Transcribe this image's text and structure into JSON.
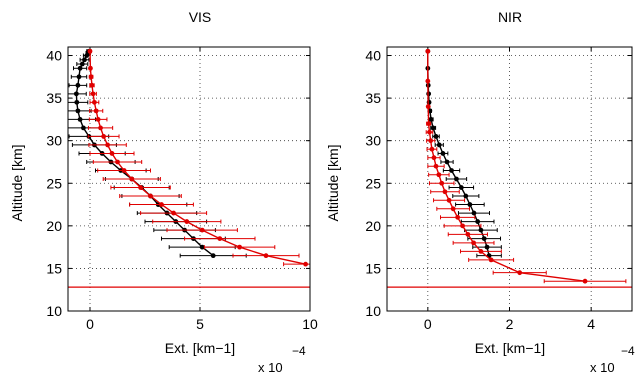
{
  "chart_data": [
    {
      "type": "line",
      "title": "VIS",
      "xlabel": "Ext. [km−1]",
      "ylabel": "Altitude [km]",
      "x_multiplier": "x 10",
      "x_exponent": "−4",
      "xlim": [
        -1,
        10
      ],
      "ylim": [
        10,
        41
      ],
      "xticks": [
        0,
        5,
        10
      ],
      "yticks": [
        10,
        15,
        20,
        25,
        30,
        35,
        40
      ],
      "grid": true,
      "reference_line": {
        "y": 12.8,
        "color": "#e00000"
      },
      "series": [
        {
          "color": "#000000",
          "x": [
            5.6,
            5.1,
            4.7,
            4.3,
            3.9,
            3.5,
            3.1,
            2.75,
            2.35,
            1.9,
            1.4,
            0.95,
            0.55,
            0.2,
            -0.05,
            -0.3,
            -0.45,
            -0.55,
            -0.6,
            -0.62,
            -0.55,
            -0.5,
            -0.45,
            -0.35,
            -0.25,
            -0.15,
            -0.08,
            -0.05
          ],
          "y": [
            16.5,
            17.5,
            18.5,
            19.5,
            20.5,
            21.5,
            22.5,
            23.5,
            24.5,
            25.5,
            26.5,
            27.5,
            28.5,
            29.5,
            30.5,
            31.5,
            32.5,
            33.5,
            34.5,
            35.5,
            36.5,
            37.5,
            38.5,
            39.0,
            39.5,
            40.0,
            40.3,
            40.5
          ],
          "xerr": [
            1.5,
            1.5,
            1.45,
            1.4,
            1.4,
            1.35,
            1.3,
            1.3,
            1.25,
            1.2,
            1.15,
            1.1,
            1.05,
            1.0,
            0.9,
            0.8,
            0.7,
            0.6,
            0.5,
            0.45,
            0.4,
            0.35,
            0.3,
            0.25,
            0.2,
            0.15,
            0.1,
            0.1
          ]
        },
        {
          "color": "#e00000",
          "x": [
            9.8,
            8.0,
            6.8,
            5.9,
            5.1,
            4.4,
            3.8,
            3.25,
            2.75,
            2.3,
            1.9,
            1.55,
            1.25,
            1.0,
            0.8,
            0.62,
            0.48,
            0.37,
            0.28,
            0.2,
            0.14,
            0.09,
            0.05,
            0.02,
            0.0
          ],
          "y": [
            15.5,
            16.5,
            17.5,
            18.5,
            19.5,
            20.5,
            21.5,
            22.5,
            23.5,
            24.5,
            25.5,
            26.5,
            27.5,
            28.5,
            29.5,
            30.5,
            31.5,
            32.5,
            33.5,
            34.5,
            35.5,
            36.5,
            37.5,
            38.5,
            40.5
          ],
          "xerr": [
            1.0,
            1.5,
            1.6,
            1.6,
            1.6,
            1.55,
            1.5,
            1.45,
            1.4,
            1.35,
            1.3,
            1.2,
            1.1,
            1.0,
            0.85,
            0.7,
            0.55,
            0.4,
            0.3,
            0.2,
            0.15,
            0.1,
            0.08,
            0.05,
            0.05
          ]
        }
      ]
    },
    {
      "type": "line",
      "title": "NIR",
      "xlabel": "Ext. [km−1]",
      "ylabel": "Altitude [km]",
      "x_multiplier": "x 10",
      "x_exponent": "−4",
      "xlim": [
        -1,
        5
      ],
      "ylim": [
        10,
        41
      ],
      "xticks": [
        0,
        2,
        4
      ],
      "yticks": [
        10,
        15,
        20,
        25,
        30,
        35,
        40
      ],
      "grid": true,
      "reference_line": {
        "y": 12.8,
        "color": "#e00000"
      },
      "series": [
        {
          "color": "#000000",
          "x": [
            1.5,
            1.45,
            1.38,
            1.3,
            1.22,
            1.13,
            1.03,
            0.93,
            0.82,
            0.7,
            0.58,
            0.47,
            0.37,
            0.28,
            0.2,
            0.13,
            0.08,
            0.05,
            0.03,
            0.02,
            0.01,
            0.0,
            0.0
          ],
          "y": [
            16.5,
            17.5,
            18.5,
            19.5,
            20.5,
            21.5,
            22.5,
            23.5,
            24.5,
            25.5,
            26.5,
            27.5,
            28.5,
            29.5,
            30.5,
            31.5,
            32.5,
            33.5,
            34.5,
            35.5,
            36.5,
            38.5,
            40.5
          ],
          "xerr": [
            0.3,
            0.35,
            0.4,
            0.4,
            0.4,
            0.38,
            0.35,
            0.32,
            0.3,
            0.25,
            0.2,
            0.15,
            0.12,
            0.1,
            0.08,
            0.06,
            0.05,
            0.04,
            0.03,
            0.02,
            0.02,
            0.01,
            0.01
          ]
        },
        {
          "color": "#e00000",
          "x": [
            3.85,
            2.25,
            1.55,
            1.3,
            1.12,
            0.98,
            0.85,
            0.73,
            0.62,
            0.52,
            0.42,
            0.34,
            0.27,
            0.2,
            0.15,
            0.1,
            0.07,
            0.04,
            0.02,
            0.01,
            0.0,
            0.0
          ],
          "y": [
            13.5,
            14.5,
            16.0,
            17.0,
            18.0,
            19.0,
            20.0,
            21.0,
            22.0,
            23.0,
            24.0,
            25.0,
            26.0,
            27.0,
            28.0,
            29.0,
            30.0,
            31.0,
            32.0,
            34.0,
            37.0,
            40.5
          ],
          "xerr": [
            1.0,
            0.65,
            0.55,
            0.5,
            0.5,
            0.48,
            0.45,
            0.42,
            0.4,
            0.38,
            0.35,
            0.3,
            0.25,
            0.2,
            0.15,
            0.12,
            0.1,
            0.08,
            0.05,
            0.03,
            0.02,
            0.01
          ]
        }
      ]
    }
  ]
}
